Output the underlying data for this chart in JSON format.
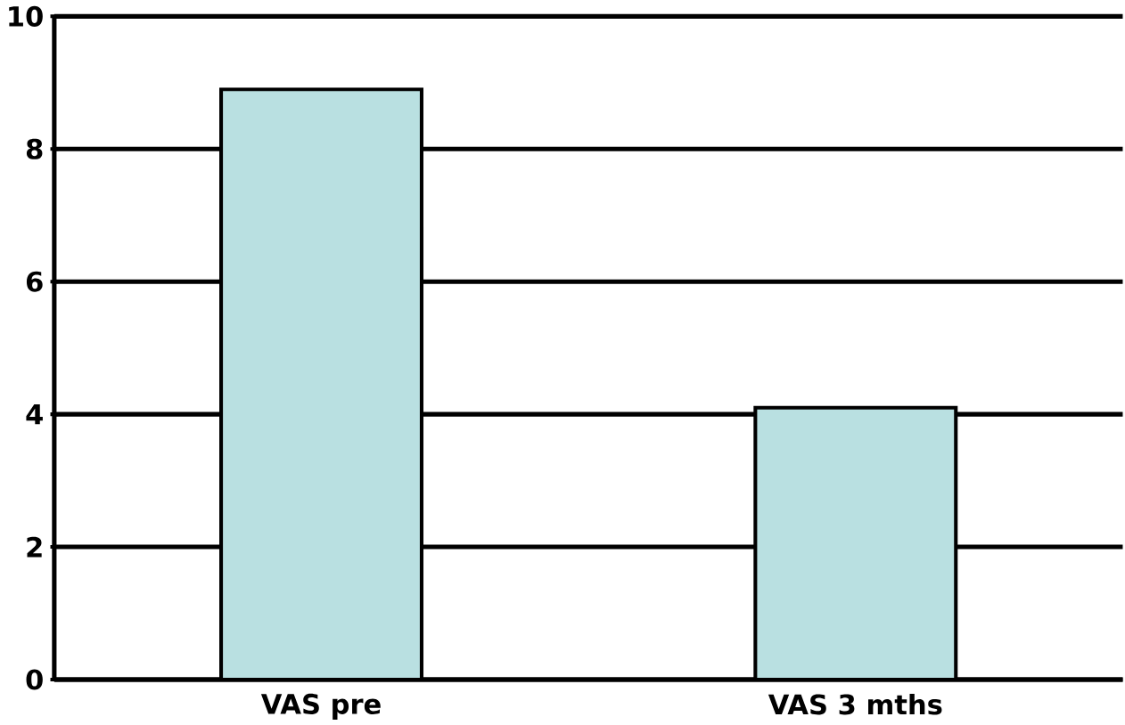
{
  "chart_data": {
    "type": "bar",
    "categories": [
      "VAS pre",
      "VAS 3 mths"
    ],
    "values": [
      8.9,
      4.1
    ],
    "color": "#b9e0e1",
    "ylim": [
      0,
      10
    ],
    "yticks": [
      0,
      2,
      4,
      6,
      8,
      10
    ],
    "grid": "y"
  }
}
